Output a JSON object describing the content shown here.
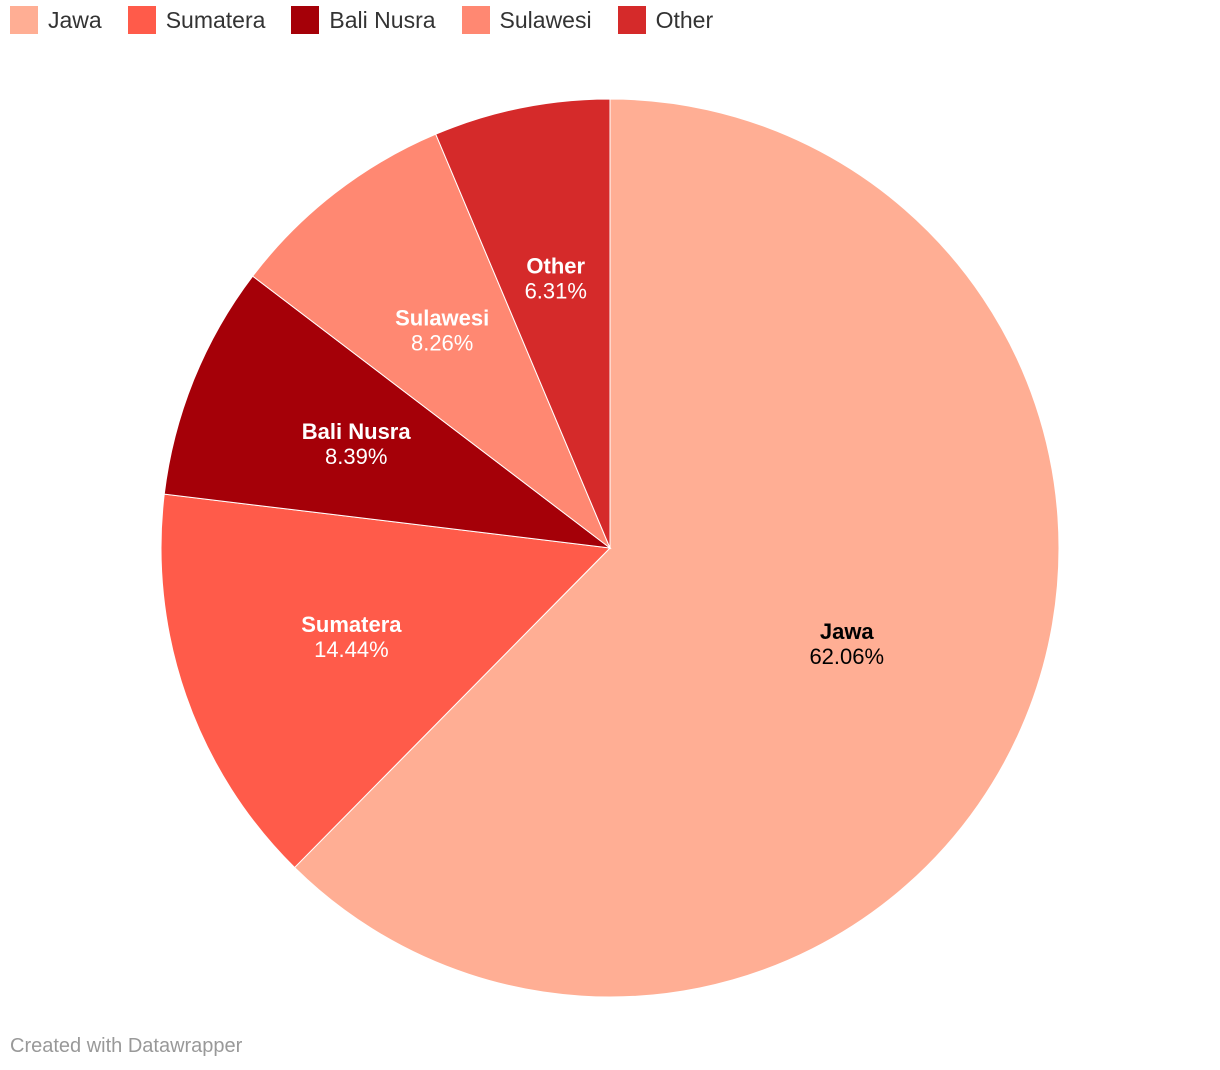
{
  "chart_data": {
    "type": "pie",
    "slices": [
      {
        "label": "Jawa",
        "value": 62.06,
        "display": "62.06%",
        "color": "#ffae94",
        "text_color": "#000000"
      },
      {
        "label": "Sumatera",
        "value": 14.44,
        "display": "14.44%",
        "color": "#ff5b4a",
        "text_color": "#ffffff"
      },
      {
        "label": "Bali Nusra",
        "value": 8.39,
        "display": "8.39%",
        "color": "#a50008",
        "text_color": "#ffffff"
      },
      {
        "label": "Sulawesi",
        "value": 8.26,
        "display": "8.26%",
        "color": "#ff8872",
        "text_color": "#ffffff"
      },
      {
        "label": "Other",
        "value": 6.31,
        "display": "6.31%",
        "color": "#d52a2a",
        "text_color": "#ffffff"
      }
    ],
    "legend": {
      "placement": "top-left",
      "items": [
        {
          "label": "Jawa",
          "color": "#ffae94"
        },
        {
          "label": "Sumatera",
          "color": "#ff5b4a"
        },
        {
          "label": "Bali Nusra",
          "color": "#a50008"
        },
        {
          "label": "Sulawesi",
          "color": "#ff8872"
        },
        {
          "label": "Other",
          "color": "#d52a2a"
        }
      ]
    }
  },
  "footer": {
    "credit": "Created with Datawrapper"
  }
}
